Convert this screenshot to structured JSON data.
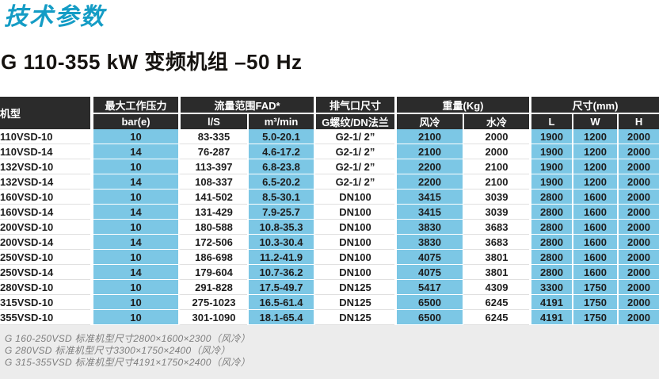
{
  "page": {
    "title": "技术参数",
    "subtitle": "G 110-355 kW 变频机组 –50 Hz"
  },
  "colors": {
    "accent_teal": "#149cc5",
    "header_dark": "#2b2b2b",
    "cell_blue": "#7cc7e5",
    "footer_gray": "#ececec"
  },
  "table": {
    "header": {
      "model": "机型",
      "pressure_group": "最大工作压力",
      "pressure_sub": "bar(e)",
      "flow_group": "流量范围FAD*",
      "flow_sub_ls": "l/S",
      "flow_sub_m3": "m³/min",
      "outlet_group": "排气口尺寸",
      "outlet_sub": "G螺纹/DN法兰",
      "weight_group": "重量(Kg)",
      "weight_sub_air": "风冷",
      "weight_sub_water": "水冷",
      "dims_group": "尺寸(mm)",
      "dims_sub_l": "L",
      "dims_sub_w": "W",
      "dims_sub_h": "H"
    },
    "col_keys": [
      "model",
      "pressure-bar",
      "fad-ls",
      "fad-m3min",
      "outlet-size",
      "weight-air",
      "weight-water",
      "dim-l",
      "dim-w",
      "dim-h"
    ],
    "rows": [
      [
        "110VSD-10",
        "10",
        "83-335",
        "5.0-20.1",
        "G2-1/ 2”",
        "2100",
        "2000",
        "1900",
        "1200",
        "2000"
      ],
      [
        "110VSD-14",
        "14",
        "76-287",
        "4.6-17.2",
        "G2-1/ 2”",
        "2100",
        "2000",
        "1900",
        "1200",
        "2000"
      ],
      [
        "132VSD-10",
        "10",
        "113-397",
        "6.8-23.8",
        "G2-1/ 2”",
        "2200",
        "2100",
        "1900",
        "1200",
        "2000"
      ],
      [
        "132VSD-14",
        "14",
        "108-337",
        "6.5-20.2",
        "G2-1/ 2”",
        "2200",
        "2100",
        "1900",
        "1200",
        "2000"
      ],
      [
        "160VSD-10",
        "10",
        "141-502",
        "8.5-30.1",
        "DN100",
        "3415",
        "3039",
        "2800",
        "1600",
        "2000"
      ],
      [
        "160VSD-14",
        "14",
        "131-429",
        "7.9-25.7",
        "DN100",
        "3415",
        "3039",
        "2800",
        "1600",
        "2000"
      ],
      [
        "200VSD-10",
        "10",
        "180-588",
        "10.8-35.3",
        "DN100",
        "3830",
        "3683",
        "2800",
        "1600",
        "2000"
      ],
      [
        "200VSD-14",
        "14",
        "172-506",
        "10.3-30.4",
        "DN100",
        "3830",
        "3683",
        "2800",
        "1600",
        "2000"
      ],
      [
        "250VSD-10",
        "10",
        "186-698",
        "11.2-41.9",
        "DN100",
        "4075",
        "3801",
        "2800",
        "1600",
        "2000"
      ],
      [
        "250VSD-14",
        "14",
        "179-604",
        "10.7-36.2",
        "DN100",
        "4075",
        "3801",
        "2800",
        "1600",
        "2000"
      ],
      [
        "280VSD-10",
        "10",
        "291-828",
        "17.5-49.7",
        "DN125",
        "5417",
        "4309",
        "3300",
        "1750",
        "2000"
      ],
      [
        "315VSD-10",
        "10",
        "275-1023",
        "16.5-61.4",
        "DN125",
        "6500",
        "6245",
        "4191",
        "1750",
        "2000"
      ],
      [
        "355VSD-10",
        "10",
        "301-1090",
        "18.1-65.4",
        "DN125",
        "6500",
        "6245",
        "4191",
        "1750",
        "2000"
      ]
    ]
  },
  "footnotes": [
    "G 160-250VSD 标准机型尺寸2800×1600×2300（风冷）",
    "G 280VSD 标准机型尺寸3300×1750×2400（风冷）",
    "G 315-355VSD 标准机型尺寸4191×1750×2400（风冷）"
  ]
}
